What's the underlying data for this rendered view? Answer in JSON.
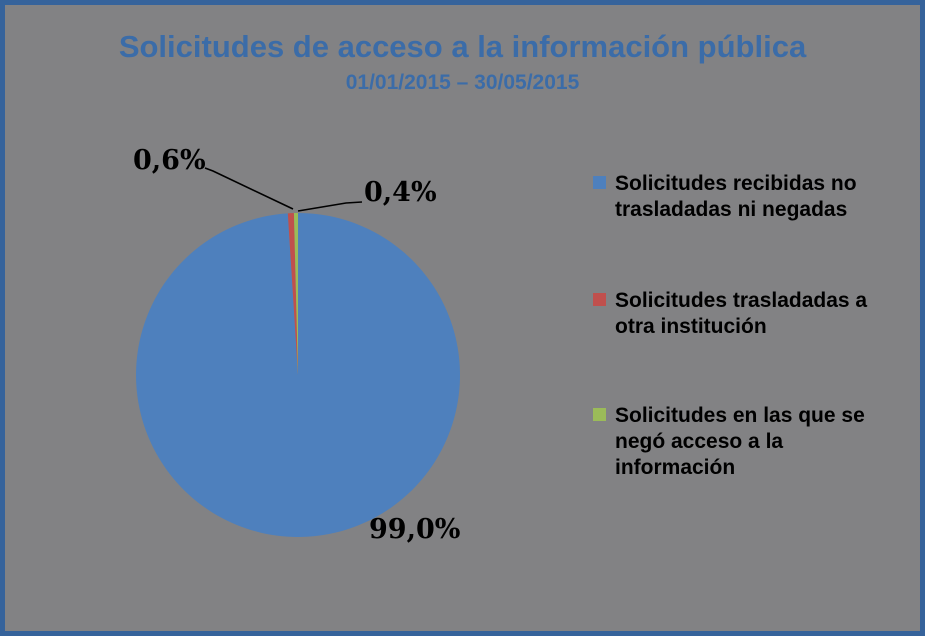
{
  "window": {
    "background_color": "#828284",
    "frame_color": "#36639b",
    "title_color": "#3b6ca8",
    "label_color": "#000000"
  },
  "header": {
    "title": "Solicitudes de acceso a la información pública",
    "subtitle": "01/01/2015 – 30/05/2015"
  },
  "chart_data": {
    "type": "pie",
    "title": "Solicitudes de acceso a la información pública",
    "subtitle": "01/01/2015 – 30/05/2015",
    "start_angle": "12-o-clock",
    "direction": "clockwise",
    "legend_position": "right",
    "grid": false,
    "series": [
      {
        "name": "Solicitudes recibidas no trasladadas ni negadas",
        "value": 99.0,
        "display_label": "99,0%",
        "color": "#4e80bd"
      },
      {
        "name": "Solicitudes trasladadas a otra institución",
        "value": 0.6,
        "display_label": "0,6%",
        "color": "#c0504d"
      },
      {
        "name": "Solicitudes en las que se negó acceso a la información",
        "value": 0.4,
        "display_label": "0,4%",
        "color": "#9bbb59"
      }
    ]
  }
}
